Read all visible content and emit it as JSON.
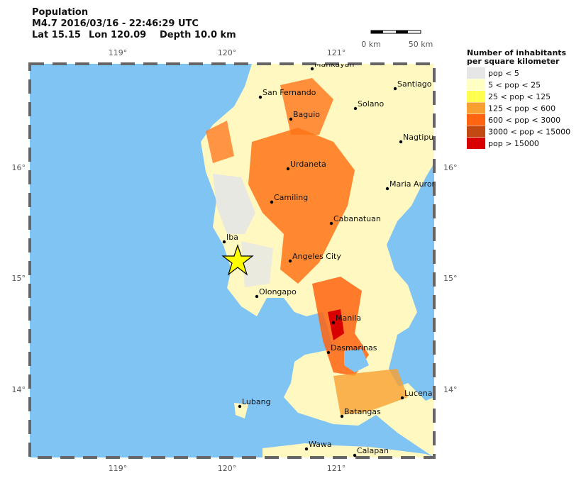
{
  "header": {
    "title": "Population",
    "event": "M4.7  2016/03/16 - 22:46:29 UTC",
    "lat": "Lat 15.15",
    "lon": "Lon 120.09",
    "depth": "Depth  10.0 km"
  },
  "scale_bar": {
    "start": "0 km",
    "end": "50 km"
  },
  "legend": {
    "title": [
      "Number of inhabitants",
      "per square kilometer"
    ],
    "items": [
      {
        "label": "pop < 5",
        "color": "#e6e6e6"
      },
      {
        "label": "5 < pop < 25",
        "color": "#ffffc4"
      },
      {
        "label": "25 < pop < 125",
        "color": "#ffff50"
      },
      {
        "label": "125 < pop < 600",
        "color": "#f7a030"
      },
      {
        "label": "600 < pop < 3000",
        "color": "#ff6410"
      },
      {
        "label": "3000 < pop < 15000",
        "color": "#c24a12"
      },
      {
        "label": "pop > 15000",
        "color": "#d80000"
      }
    ]
  },
  "map": {
    "lon_ticks": [
      "119°",
      "120°",
      "121°"
    ],
    "lat_ticks": [
      "16°",
      "15°",
      "14°"
    ],
    "cities": [
      "Mankayan",
      "San Fernando",
      "Santiago",
      "Solano",
      "Baguio",
      "Nagtipunan",
      "Urdaneta",
      "Maria Aurora",
      "Camiling",
      "Cabanatuan",
      "Iba",
      "Angeles City",
      "Olongapo",
      "Manila",
      "Dasmarinas",
      "Lucena",
      "Lubang",
      "Batangas",
      "Wawa",
      "Calapan"
    ]
  }
}
